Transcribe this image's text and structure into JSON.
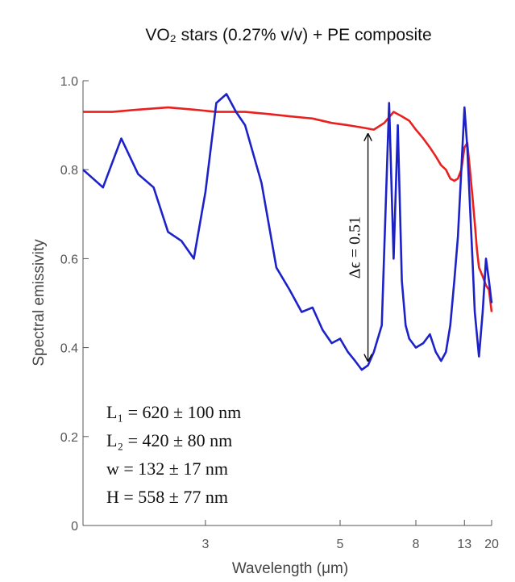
{
  "chart_data": {
    "type": "line",
    "title": "VO₂ stars (0.27% v/v) + PE composite",
    "xlabel": "Wavelength (μm)",
    "ylabel": "Spectral emissivity",
    "x_scale": "reciprocal",
    "xlim": [
      2.2,
      20
    ],
    "ylim": [
      0,
      1.0
    ],
    "x_ticks": [
      3,
      5,
      8,
      13,
      20
    ],
    "y_ticks": [
      0,
      0.2,
      0.4,
      0.6,
      0.8,
      1.0
    ],
    "y_tick_labels": [
      "0",
      "0.2",
      "0.4",
      "0.6",
      "0.8",
      "1.0"
    ],
    "grid": false,
    "series": [
      {
        "color": "#e8211e",
        "x": [
          2.2,
          2.35,
          2.5,
          2.7,
          2.9,
          3.1,
          3.4,
          3.7,
          4.0,
          4.4,
          4.8,
          5.2,
          5.6,
          6.0,
          6.4,
          6.8,
          7.2,
          7.6,
          8.0,
          8.5,
          9.0,
          9.5,
          10.0,
          10.5,
          11.0,
          11.5,
          12.0,
          12.5,
          13.0,
          13.5,
          14.0,
          14.5,
          15.0,
          15.5,
          16.0,
          17.0,
          18.0,
          19.0,
          20.0
        ],
        "y": [
          0.93,
          0.93,
          0.935,
          0.94,
          0.935,
          0.93,
          0.93,
          0.925,
          0.92,
          0.915,
          0.905,
          0.9,
          0.895,
          0.89,
          0.905,
          0.93,
          0.92,
          0.91,
          0.89,
          0.87,
          0.85,
          0.83,
          0.81,
          0.8,
          0.78,
          0.775,
          0.78,
          0.8,
          0.85,
          0.86,
          0.8,
          0.74,
          0.68,
          0.62,
          0.58,
          0.56,
          0.54,
          0.53,
          0.48
        ]
      },
      {
        "color": "#1c22c7",
        "x": [
          2.2,
          2.3,
          2.4,
          2.5,
          2.6,
          2.7,
          2.8,
          2.9,
          3.0,
          3.1,
          3.2,
          3.3,
          3.4,
          3.6,
          3.8,
          4.0,
          4.2,
          4.4,
          4.6,
          4.8,
          5.0,
          5.2,
          5.4,
          5.6,
          5.8,
          6.0,
          6.3,
          6.6,
          6.8,
          7.0,
          7.2,
          7.4,
          7.6,
          8.0,
          8.5,
          9.0,
          9.5,
          10.0,
          10.5,
          11.0,
          11.5,
          12.0,
          12.5,
          13.0,
          13.5,
          14.0,
          14.5,
          15.0,
          16.0,
          17.0,
          18.0,
          19.0,
          20.0
        ],
        "y": [
          0.8,
          0.76,
          0.87,
          0.79,
          0.76,
          0.66,
          0.64,
          0.6,
          0.75,
          0.95,
          0.97,
          0.93,
          0.9,
          0.77,
          0.58,
          0.53,
          0.48,
          0.49,
          0.44,
          0.41,
          0.42,
          0.39,
          0.37,
          0.35,
          0.36,
          0.39,
          0.45,
          0.95,
          0.6,
          0.9,
          0.55,
          0.45,
          0.42,
          0.4,
          0.41,
          0.43,
          0.39,
          0.37,
          0.39,
          0.45,
          0.55,
          0.65,
          0.8,
          0.94,
          0.85,
          0.72,
          0.6,
          0.48,
          0.38,
          0.48,
          0.6,
          0.55,
          0.5
        ]
      }
    ],
    "annotations": [
      {
        "text": "Δϵ = 0.51",
        "x": 5.8,
        "y_from": 0.37,
        "y_to": 0.88
      },
      {
        "text": "L₁ = 620 ± 100 nm"
      },
      {
        "text": "L₂ = 420 ± 80 nm"
      },
      {
        "text": "w = 132 ± 17 nm"
      },
      {
        "text": "H = 558 ± 77 nm"
      }
    ]
  }
}
